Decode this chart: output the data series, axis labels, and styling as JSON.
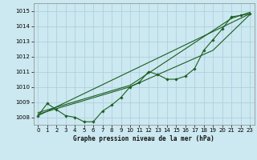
{
  "title": "Graphe pression niveau de la mer (hPa)",
  "bg_color": "#cce8f0",
  "grid_color": "#aaccdd",
  "line_color": "#1a5e20",
  "marker_color": "#1a5e20",
  "ylim": [
    1007.5,
    1015.5
  ],
  "xlim": [
    -0.5,
    23.5
  ],
  "yticks": [
    1008,
    1009,
    1010,
    1011,
    1012,
    1013,
    1014,
    1015
  ],
  "xticks": [
    0,
    1,
    2,
    3,
    4,
    5,
    6,
    7,
    8,
    9,
    10,
    11,
    12,
    13,
    14,
    15,
    16,
    17,
    18,
    19,
    20,
    21,
    22,
    23
  ],
  "series1_x": [
    0,
    1,
    2,
    3,
    4,
    5,
    6,
    7,
    8,
    9,
    10,
    11,
    12,
    13,
    14,
    15,
    16,
    17,
    18,
    19,
    20,
    21,
    22,
    23
  ],
  "series1_y": [
    1008.1,
    1008.9,
    1008.5,
    1008.1,
    1008.0,
    1007.7,
    1007.7,
    1008.4,
    1008.8,
    1009.3,
    1010.0,
    1010.3,
    1011.0,
    1010.8,
    1010.5,
    1010.5,
    1010.7,
    1011.2,
    1012.4,
    1013.1,
    1013.8,
    1014.6,
    1014.7,
    1014.8
  ],
  "series2_x": [
    0,
    23
  ],
  "series2_y": [
    1008.1,
    1014.8
  ],
  "series3_x": [
    0,
    10,
    19,
    23
  ],
  "series3_y": [
    1008.2,
    1010.0,
    1012.4,
    1014.75
  ],
  "series4_x": [
    0,
    10,
    21,
    23
  ],
  "series4_y": [
    1008.3,
    1010.1,
    1014.5,
    1014.9
  ]
}
